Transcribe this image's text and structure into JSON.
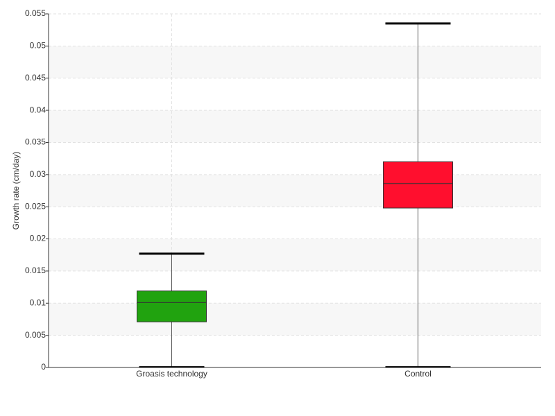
{
  "chart_data": {
    "type": "box",
    "ylabel": "Growth rate (cm/day)",
    "categories": [
      "Groasis technology",
      "Control"
    ],
    "colors": [
      "#21a30f",
      "#ff0f2e"
    ],
    "min": [
      0.0001,
      0.0001
    ],
    "q1": [
      0.0071,
      0.0248
    ],
    "median": [
      0.0101,
      0.0286
    ],
    "q3": [
      0.0119,
      0.032
    ],
    "max": [
      0.0177,
      0.0535
    ],
    "ylim": [
      0,
      0.055
    ],
    "yticks": [
      0,
      0.005,
      0.01,
      0.015,
      0.02,
      0.025,
      0.03,
      0.035,
      0.04,
      0.045,
      0.05,
      0.055
    ],
    "grid": true
  }
}
